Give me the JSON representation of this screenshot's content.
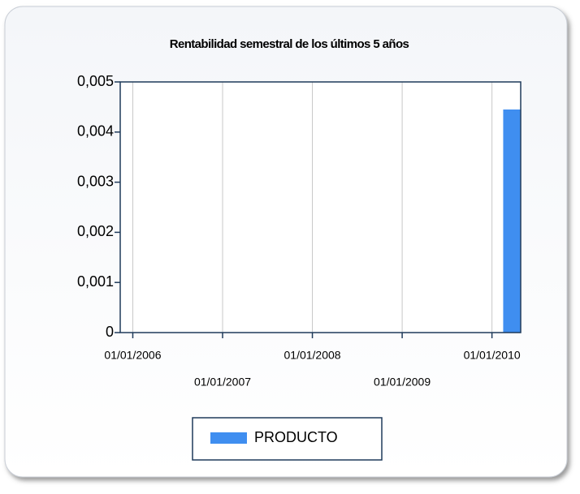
{
  "chart_data": {
    "type": "bar",
    "title": "Rentabilidad semestral de los últimos 5 años",
    "x": [
      2010.22
    ],
    "series": [
      {
        "name": "PRODUCTO",
        "color": "#3f8ef0",
        "values": [
          0.00445
        ]
      }
    ],
    "xlim": [
      2005.86,
      2010.32
    ],
    "xticks": [
      {
        "value": 2006,
        "label": "01/01/2006"
      },
      {
        "value": 2007,
        "label": "01/01/2007"
      },
      {
        "value": 2008,
        "label": "01/01/2008"
      },
      {
        "value": 2009,
        "label": "01/01/2009"
      },
      {
        "value": 2010,
        "label": "01/01/2010"
      }
    ],
    "ylim": [
      0,
      0.005
    ],
    "yticks": [
      0,
      {
        "value": 0.001,
        "label": "0,001"
      },
      {
        "value": 0.002,
        "label": "0,002"
      },
      {
        "value": 0.003,
        "label": "0,003"
      },
      {
        "value": 0.004,
        "label": "0,004"
      },
      {
        "value": 0.005,
        "label": "0,005"
      }
    ],
    "grid": "x",
    "legend": "bottom"
  }
}
